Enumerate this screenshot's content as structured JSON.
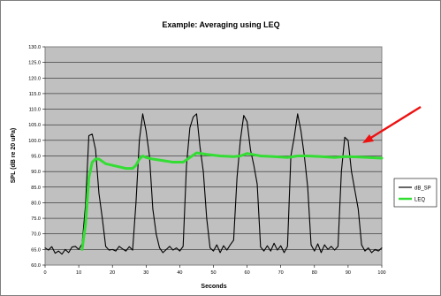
{
  "chart_data": {
    "type": "line",
    "title": "Example: Averaging using LEQ",
    "xlabel": "Seconds",
    "ylabel": "SPL (dB re 20 uPa)",
    "xlim": [
      0,
      100
    ],
    "ylim": [
      60,
      130
    ],
    "x_ticks": [
      "0",
      "10",
      "20",
      "30",
      "40",
      "50",
      "60",
      "70",
      "80",
      "90",
      "100"
    ],
    "y_ticks": [
      "60.0",
      "65.0",
      "70.0",
      "75.0",
      "80.0",
      "85.0",
      "90.0",
      "95.0",
      "100.0",
      "105.0",
      "110.0",
      "115.0",
      "120.0",
      "125.0",
      "130.0"
    ],
    "grid": true,
    "legend_position": "right",
    "series": [
      {
        "name": "dB_SP",
        "color": "#000000",
        "points": [
          [
            0,
            65.5
          ],
          [
            1,
            64.8
          ],
          [
            2,
            65.9
          ],
          [
            3,
            63.8
          ],
          [
            4,
            64.5
          ],
          [
            5,
            63.5
          ],
          [
            6,
            65.0
          ],
          [
            7,
            64.0
          ],
          [
            8,
            65.8
          ],
          [
            9,
            66.0
          ],
          [
            10,
            65.0
          ],
          [
            11,
            66.8
          ],
          [
            12,
            79.0
          ],
          [
            13,
            101.5
          ],
          [
            14,
            102.0
          ],
          [
            15,
            97.0
          ],
          [
            16,
            83.0
          ],
          [
            17,
            75.0
          ],
          [
            18,
            66.0
          ],
          [
            19,
            64.8
          ],
          [
            20,
            65.0
          ],
          [
            21,
            64.5
          ],
          [
            22,
            66.0
          ],
          [
            23,
            65.2
          ],
          [
            24,
            64.5
          ],
          [
            25,
            65.9
          ],
          [
            26,
            64.8
          ],
          [
            27,
            80.0
          ],
          [
            28,
            100.0
          ],
          [
            29,
            108.5
          ],
          [
            30,
            103.0
          ],
          [
            31,
            95.0
          ],
          [
            32,
            78.0
          ],
          [
            33,
            70.0
          ],
          [
            34,
            65.5
          ],
          [
            35,
            64.0
          ],
          [
            36,
            65.0
          ],
          [
            37,
            66.0
          ],
          [
            38,
            64.8
          ],
          [
            39,
            65.5
          ],
          [
            40,
            64.5
          ],
          [
            41,
            66.0
          ],
          [
            42,
            92.0
          ],
          [
            43,
            104.0
          ],
          [
            44,
            107.5
          ],
          [
            45,
            108.5
          ],
          [
            46,
            98.0
          ],
          [
            47,
            90.0
          ],
          [
            48,
            75.0
          ],
          [
            49,
            65.5
          ],
          [
            50,
            64.5
          ],
          [
            51,
            66.5
          ],
          [
            52,
            64.0
          ],
          [
            53,
            66.2
          ],
          [
            54,
            64.8
          ],
          [
            55,
            66.5
          ],
          [
            56,
            68.0
          ],
          [
            57,
            88.0
          ],
          [
            58,
            100.0
          ],
          [
            59,
            108.0
          ],
          [
            60,
            106.0
          ],
          [
            61,
            97.0
          ],
          [
            62,
            92.0
          ],
          [
            63,
            86.0
          ],
          [
            64,
            65.8
          ],
          [
            65,
            64.5
          ],
          [
            66,
            66.2
          ],
          [
            67,
            64.5
          ],
          [
            68,
            67.0
          ],
          [
            69,
            64.8
          ],
          [
            70,
            66.2
          ],
          [
            71,
            64.0
          ],
          [
            72,
            66.0
          ],
          [
            73,
            95.0
          ],
          [
            74,
            101.0
          ],
          [
            75,
            108.5
          ],
          [
            76,
            103.0
          ],
          [
            77,
            95.0
          ],
          [
            78,
            85.0
          ],
          [
            79,
            66.5
          ],
          [
            80,
            64.5
          ],
          [
            81,
            66.8
          ],
          [
            82,
            64.0
          ],
          [
            83,
            66.5
          ],
          [
            84,
            65.0
          ],
          [
            85,
            66.0
          ],
          [
            86,
            64.8
          ],
          [
            87,
            66.0
          ],
          [
            88,
            90.0
          ],
          [
            89,
            101.0
          ],
          [
            90,
            100.0
          ],
          [
            91,
            90.0
          ],
          [
            92,
            84.0
          ],
          [
            93,
            78.0
          ],
          [
            94,
            66.5
          ],
          [
            95,
            64.5
          ],
          [
            96,
            65.5
          ],
          [
            97,
            64.0
          ],
          [
            98,
            65.0
          ],
          [
            99,
            64.5
          ],
          [
            100,
            65.5
          ]
        ]
      },
      {
        "name": "LEQ",
        "color": "#33dd33",
        "points": [
          [
            11,
            65.0
          ],
          [
            12,
            73.0
          ],
          [
            13,
            88.0
          ],
          [
            14,
            93.0
          ],
          [
            15,
            94.0
          ],
          [
            16,
            94.0
          ],
          [
            18,
            92.5
          ],
          [
            20,
            92.0
          ],
          [
            22,
            91.5
          ],
          [
            24,
            91.0
          ],
          [
            26,
            91.0
          ],
          [
            27,
            92.0
          ],
          [
            28,
            94.0
          ],
          [
            29,
            95.0
          ],
          [
            30,
            94.5
          ],
          [
            32,
            94.0
          ],
          [
            35,
            93.5
          ],
          [
            38,
            93.0
          ],
          [
            41,
            93.0
          ],
          [
            43,
            94.5
          ],
          [
            45,
            96.0
          ],
          [
            48,
            95.5
          ],
          [
            52,
            95.0
          ],
          [
            56,
            94.8
          ],
          [
            58,
            95.0
          ],
          [
            60,
            95.8
          ],
          [
            64,
            95.0
          ],
          [
            68,
            94.8
          ],
          [
            72,
            94.5
          ],
          [
            75,
            95.0
          ],
          [
            78,
            95.0
          ],
          [
            82,
            94.8
          ],
          [
            86,
            94.5
          ],
          [
            89,
            94.8
          ],
          [
            92,
            94.7
          ],
          [
            96,
            94.5
          ],
          [
            100,
            94.3
          ]
        ]
      }
    ]
  }
}
